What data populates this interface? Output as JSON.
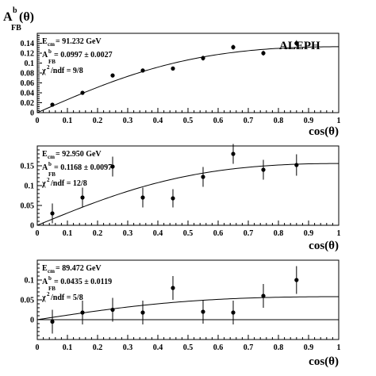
{
  "ylabel_main": "A",
  "ylabel_sup": "b",
  "ylabel_arg": "(θ)",
  "ylabel_sub": "FB",
  "brand": "ALEPH",
  "chart_data": [
    {
      "type": "scatter",
      "title": "",
      "xlabel": "cos(θ)",
      "xlim": [
        0,
        1
      ],
      "ylim": [
        0,
        0.16
      ],
      "xticks": [
        "0",
        "0.1",
        "0.2",
        "0.3",
        "0.4",
        "0.5",
        "0.6",
        "0.7",
        "0.8",
        "0.9",
        "1"
      ],
      "yticks": [
        "0",
        "0.02",
        "0.04",
        "0.06",
        "0.08",
        "0.1",
        "0.12",
        "0.14"
      ],
      "ytick_values": [
        0,
        0.02,
        0.04,
        0.06,
        0.08,
        0.1,
        0.12,
        0.14
      ],
      "annotations": {
        "ecm_label": "E",
        "ecm_sub": "cm",
        "ecm_value": " = 91.232 GeV",
        "afb_label": "A",
        "afb_sup": "b",
        "afb_sub": "FB",
        "afb_value": " = 0.0997 ± 0.0027",
        "chi_label": "χ",
        "chi_sup": "2",
        "chi_value": "/ndf = 9/8"
      },
      "fit_asym": 0.0997,
      "series": [
        {
          "x": [
            0.05,
            0.15,
            0.25,
            0.35,
            0.45,
            0.55,
            0.65,
            0.75,
            0.86
          ],
          "y": [
            0.016,
            0.04,
            0.075,
            0.085,
            0.089,
            0.11,
            0.132,
            0.12,
            0.14
          ],
          "err": [
            0.003,
            0.004,
            0.004,
            0.004,
            0.004,
            0.005,
            0.005,
            0.005,
            0.006
          ]
        }
      ]
    },
    {
      "type": "scatter",
      "title": "",
      "xlabel": "cos(θ)",
      "xlim": [
        0,
        1
      ],
      "ylim": [
        0,
        0.2
      ],
      "xticks": [
        "0",
        "0.1",
        "0.2",
        "0.3",
        "0.4",
        "0.5",
        "0.6",
        "0.7",
        "0.8",
        "0.9",
        "1"
      ],
      "yticks": [
        "0",
        "0.05",
        "0.1",
        "0.15"
      ],
      "ytick_values": [
        0,
        0.05,
        0.1,
        0.15
      ],
      "annotations": {
        "ecm_label": "E",
        "ecm_sub": "cm",
        "ecm_value": " = 92.950 GeV",
        "afb_label": "A",
        "afb_sup": "b",
        "afb_sub": "FB",
        "afb_value": " = 0.1168 ± 0.0097",
        "chi_label": "χ",
        "chi_sup": "2",
        "chi_value": "/ndf = 12/8"
      },
      "fit_asym": 0.1168,
      "series": [
        {
          "x": [
            0.05,
            0.15,
            0.25,
            0.35,
            0.45,
            0.55,
            0.65,
            0.75,
            0.86
          ],
          "y": [
            0.03,
            0.07,
            0.148,
            0.07,
            0.068,
            0.122,
            0.18,
            0.14,
            0.152
          ],
          "err": [
            0.025,
            0.025,
            0.025,
            0.025,
            0.023,
            0.025,
            0.025,
            0.025,
            0.027
          ]
        }
      ]
    },
    {
      "type": "scatter",
      "title": "",
      "xlabel": "cos(θ)",
      "xlim": [
        0,
        1
      ],
      "ylim": [
        -0.05,
        0.15
      ],
      "xticks": [
        "0",
        "0.1",
        "0.2",
        "0.3",
        "0.4",
        "0.5",
        "0.6",
        "0.7",
        "0.8",
        "0.9",
        "1"
      ],
      "yticks": [
        "0",
        "0.05",
        "0.1"
      ],
      "ytick_values": [
        0,
        0.05,
        0.1
      ],
      "annotations": {
        "ecm_label": "E",
        "ecm_sub": "cm",
        "ecm_value": " = 89.472 GeV",
        "afb_label": "A",
        "afb_sup": "b",
        "afb_sub": "FB",
        "afb_value": " = 0.0435 ± 0.0119",
        "chi_label": "χ",
        "chi_sup": "2",
        "chi_value": "/ndf = 5/8"
      },
      "fit_asym": 0.0435,
      "series": [
        {
          "x": [
            0.05,
            0.15,
            0.25,
            0.35,
            0.45,
            0.55,
            0.65,
            0.75,
            0.86
          ],
          "y": [
            -0.005,
            0.018,
            0.025,
            0.018,
            0.08,
            0.02,
            0.018,
            0.06,
            0.1
          ],
          "err": [
            0.03,
            0.03,
            0.03,
            0.03,
            0.03,
            0.03,
            0.03,
            0.03,
            0.035
          ]
        }
      ]
    }
  ]
}
